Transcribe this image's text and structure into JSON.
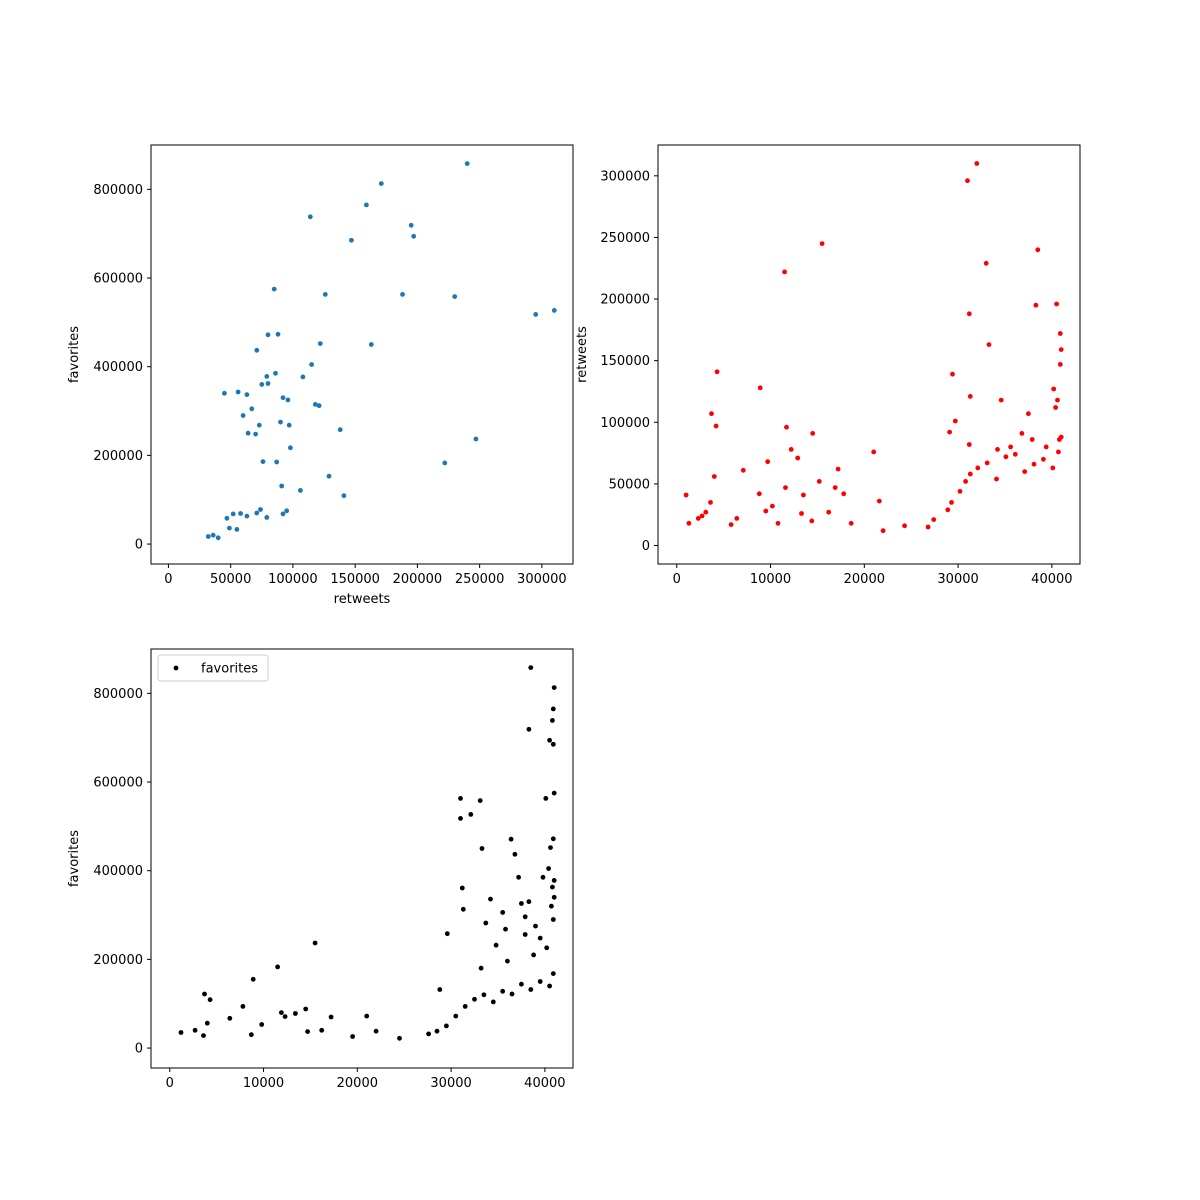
{
  "chart_data": [
    {
      "type": "scatter",
      "title": "",
      "xlabel": "retweets",
      "ylabel": "favorites",
      "xlim": [
        -14000,
        325000
      ],
      "ylim": [
        -45000,
        900000
      ],
      "xticks": [
        0,
        50000,
        100000,
        150000,
        200000,
        250000,
        300000
      ],
      "yticks": [
        0,
        200000,
        400000,
        600000,
        800000
      ],
      "grid": false,
      "legend": null,
      "series": [
        {
          "color": "#1f77b4",
          "points": [
            [
              240000,
              858000
            ],
            [
              171000,
              813000
            ],
            [
              159000,
              765000
            ],
            [
              114000,
              738000
            ],
            [
              195000,
              719000
            ],
            [
              197000,
              694000
            ],
            [
              147000,
              685000
            ],
            [
              85000,
              575000
            ],
            [
              126000,
              563000
            ],
            [
              188000,
              563000
            ],
            [
              230000,
              558000
            ],
            [
              310000,
              527000
            ],
            [
              295000,
              518000
            ],
            [
              80000,
              472000
            ],
            [
              88000,
              473000
            ],
            [
              122000,
              452000
            ],
            [
              163000,
              450000
            ],
            [
              71000,
              437000
            ],
            [
              115000,
              405000
            ],
            [
              86000,
              385000
            ],
            [
              79000,
              378000
            ],
            [
              108000,
              377000
            ],
            [
              75000,
              360000
            ],
            [
              80000,
              362000
            ],
            [
              45000,
              340000
            ],
            [
              56000,
              343000
            ],
            [
              63000,
              337000
            ],
            [
              92000,
              330000
            ],
            [
              96000,
              325000
            ],
            [
              118000,
              315000
            ],
            [
              121000,
              312000
            ],
            [
              67000,
              305000
            ],
            [
              60000,
              290000
            ],
            [
              73000,
              268000
            ],
            [
              90000,
              275000
            ],
            [
              97000,
              268000
            ],
            [
              138000,
              258000
            ],
            [
              64000,
              250000
            ],
            [
              70000,
              248000
            ],
            [
              247000,
              237000
            ],
            [
              98000,
              217000
            ],
            [
              87000,
              185000
            ],
            [
              76000,
              186000
            ],
            [
              222000,
              183000
            ],
            [
              129000,
              153000
            ],
            [
              91000,
              131000
            ],
            [
              106000,
              121000
            ],
            [
              141000,
              109000
            ],
            [
              74000,
              78000
            ],
            [
              92000,
              68000
            ],
            [
              95000,
              75000
            ],
            [
              71000,
              70000
            ],
            [
              58000,
              69000
            ],
            [
              52000,
              68000
            ],
            [
              63000,
              63000
            ],
            [
              47000,
              58000
            ],
            [
              79000,
              60000
            ],
            [
              49000,
              36000
            ],
            [
              55000,
              33000
            ],
            [
              36000,
              20000
            ],
            [
              32000,
              17000
            ],
            [
              40000,
              14000
            ]
          ]
        }
      ]
    },
    {
      "type": "scatter",
      "title": "",
      "xlabel": "",
      "ylabel": "retweets",
      "xlim": [
        -2000,
        43000
      ],
      "ylim": [
        -15000,
        325000
      ],
      "xticks": [
        0,
        10000,
        20000,
        30000,
        40000
      ],
      "yticks": [
        0,
        50000,
        100000,
        150000,
        200000,
        250000,
        300000
      ],
      "grid": false,
      "legend": null,
      "series": [
        {
          "color": "#ff0000",
          "points": [
            [
              32000,
              310000
            ],
            [
              31000,
              296000
            ],
            [
              15500,
              245000
            ],
            [
              38500,
              240000
            ],
            [
              11500,
              222000
            ],
            [
              33000,
              229000
            ],
            [
              40500,
              196000
            ],
            [
              38300,
              195000
            ],
            [
              31200,
              188000
            ],
            [
              40900,
              172000
            ],
            [
              33300,
              163000
            ],
            [
              41000,
              159000
            ],
            [
              40900,
              147000
            ],
            [
              4300,
              141000
            ],
            [
              29400,
              139000
            ],
            [
              8900,
              128000
            ],
            [
              40200,
              127000
            ],
            [
              31300,
              121000
            ],
            [
              40600,
              118000
            ],
            [
              34600,
              118000
            ],
            [
              40400,
              112000
            ],
            [
              3700,
              107000
            ],
            [
              37500,
              107000
            ],
            [
              4200,
              97000
            ],
            [
              11700,
              96000
            ],
            [
              29700,
              101000
            ],
            [
              29100,
              92000
            ],
            [
              14500,
              91000
            ],
            [
              41000,
              88000
            ],
            [
              40800,
              86000
            ],
            [
              31200,
              82000
            ],
            [
              12200,
              78000
            ],
            [
              21000,
              76000
            ],
            [
              12900,
              71000
            ],
            [
              9700,
              68000
            ],
            [
              17200,
              62000
            ],
            [
              7100,
              61000
            ],
            [
              4000,
              56000
            ],
            [
              11600,
              47000
            ],
            [
              15200,
              52000
            ],
            [
              1000,
              41000
            ],
            [
              13500,
              41000
            ],
            [
              8800,
              42000
            ],
            [
              17800,
              42000
            ],
            [
              16900,
              47000
            ],
            [
              3600,
              35000
            ],
            [
              21600,
              36000
            ],
            [
              6400,
              22000
            ],
            [
              3100,
              27000
            ],
            [
              2700,
              24000
            ],
            [
              2300,
              22000
            ],
            [
              1300,
              18000
            ],
            [
              5800,
              17000
            ],
            [
              10800,
              18000
            ],
            [
              9500,
              28000
            ],
            [
              10200,
              32000
            ],
            [
              13300,
              26000
            ],
            [
              14400,
              20000
            ],
            [
              16200,
              27000
            ],
            [
              18600,
              18000
            ],
            [
              22000,
              12000
            ],
            [
              24300,
              16000
            ],
            [
              26800,
              15000
            ],
            [
              27400,
              21000
            ],
            [
              28900,
              29000
            ],
            [
              29300,
              35000
            ],
            [
              30200,
              44000
            ],
            [
              30800,
              52000
            ],
            [
              31300,
              58000
            ],
            [
              32100,
              63000
            ],
            [
              33100,
              67000
            ],
            [
              34100,
              54000
            ],
            [
              35100,
              72000
            ],
            [
              36100,
              74000
            ],
            [
              37100,
              60000
            ],
            [
              38100,
              66000
            ],
            [
              39100,
              70000
            ],
            [
              40100,
              63000
            ],
            [
              40700,
              76000
            ],
            [
              35600,
              80000
            ],
            [
              36800,
              91000
            ],
            [
              37900,
              86000
            ],
            [
              39400,
              80000
            ],
            [
              34200,
              78000
            ]
          ]
        }
      ]
    },
    {
      "type": "scatter",
      "title": "",
      "xlabel": "",
      "ylabel": "favorites",
      "xlim": [
        -2000,
        43000
      ],
      "ylim": [
        -45000,
        900000
      ],
      "xticks": [
        0,
        10000,
        20000,
        30000,
        40000
      ],
      "yticks": [
        0,
        200000,
        400000,
        600000,
        800000
      ],
      "grid": false,
      "legend": "upper left",
      "series": [
        {
          "name": "favorites",
          "color": "#000000",
          "points": [
            [
              38500,
              858000
            ],
            [
              41000,
              813000
            ],
            [
              40900,
              765000
            ],
            [
              40800,
              739000
            ],
            [
              38300,
              719000
            ],
            [
              40500,
              694000
            ],
            [
              40900,
              685000
            ],
            [
              41000,
              575000
            ],
            [
              31000,
              563000
            ],
            [
              40100,
              563000
            ],
            [
              33100,
              558000
            ],
            [
              32100,
              527000
            ],
            [
              31000,
              518000
            ],
            [
              40900,
              472000
            ],
            [
              36400,
              471000
            ],
            [
              40600,
              452000
            ],
            [
              33300,
              450000
            ],
            [
              36800,
              437000
            ],
            [
              40400,
              405000
            ],
            [
              39800,
              385000
            ],
            [
              37200,
              385000
            ],
            [
              41000,
              378000
            ],
            [
              40800,
              363000
            ],
            [
              31200,
              361000
            ],
            [
              34200,
              336000
            ],
            [
              41000,
              340000
            ],
            [
              37500,
              326000
            ],
            [
              38300,
              330000
            ],
            [
              40700,
              320000
            ],
            [
              31300,
              313000
            ],
            [
              35500,
              306000
            ],
            [
              37900,
              296000
            ],
            [
              40900,
              290000
            ],
            [
              39000,
              275000
            ],
            [
              33700,
              282000
            ],
            [
              29600,
              258000
            ],
            [
              35800,
              268000
            ],
            [
              15500,
              237000
            ],
            [
              37900,
              256000
            ],
            [
              39500,
              248000
            ],
            [
              11500,
              183000
            ],
            [
              8900,
              155000
            ],
            [
              28800,
              132000
            ],
            [
              3700,
              122000
            ],
            [
              4300,
              109000
            ],
            [
              7800,
              94000
            ],
            [
              14500,
              88000
            ],
            [
              11900,
              80000
            ],
            [
              13400,
              78000
            ],
            [
              12300,
              71000
            ],
            [
              21000,
              72000
            ],
            [
              17200,
              70000
            ],
            [
              6400,
              67000
            ],
            [
              4000,
              56000
            ],
            [
              9800,
              53000
            ],
            [
              2700,
              40000
            ],
            [
              1200,
              35000
            ],
            [
              22000,
              38000
            ],
            [
              16200,
              40000
            ],
            [
              14700,
              37000
            ],
            [
              3600,
              28000
            ],
            [
              8700,
              30000
            ],
            [
              19500,
              26000
            ],
            [
              24500,
              22000
            ],
            [
              27600,
              32000
            ],
            [
              28500,
              38000
            ],
            [
              29500,
              50000
            ],
            [
              30500,
              72000
            ],
            [
              31500,
              94000
            ],
            [
              32500,
              110000
            ],
            [
              33500,
              120000
            ],
            [
              34500,
              104000
            ],
            [
              35500,
              128000
            ],
            [
              36500,
              122000
            ],
            [
              37500,
              144000
            ],
            [
              38500,
              132000
            ],
            [
              39500,
              150000
            ],
            [
              40500,
              140000
            ],
            [
              40900,
              168000
            ],
            [
              33200,
              180000
            ],
            [
              36000,
              196000
            ],
            [
              38800,
              210000
            ],
            [
              40200,
              226000
            ],
            [
              34800,
              232000
            ]
          ]
        }
      ]
    }
  ]
}
